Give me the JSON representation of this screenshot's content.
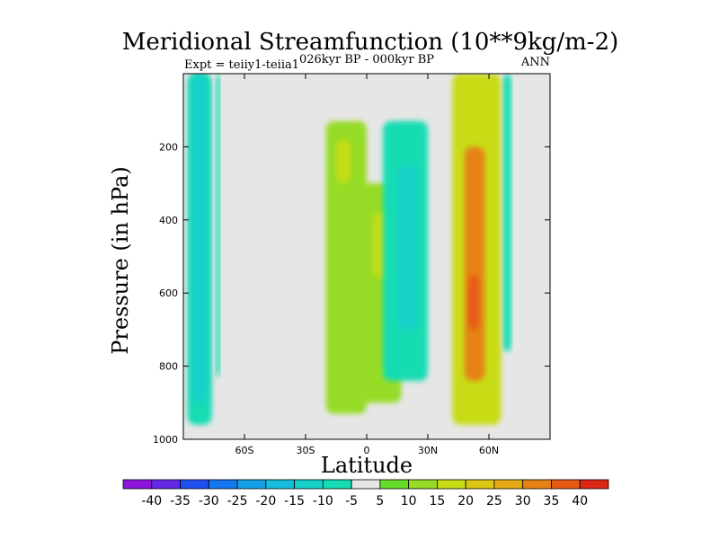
{
  "chart_data": {
    "type": "heatmap",
    "title": "Meridional Streamfunction (10**9kg/m-2)",
    "subtitle_left": "Expt = teiiy1-teiia1",
    "subtitle_center": "026kyr BP - 000kyr BP",
    "subtitle_right": "ANN",
    "xlabel": "Latitude",
    "ylabel": "Pressure (in hPa)",
    "xlim": [
      -90,
      90
    ],
    "ylim": [
      1000,
      0
    ],
    "x_ticks": [
      {
        "value": -60,
        "label": "60S"
      },
      {
        "value": -30,
        "label": "30S"
      },
      {
        "value": 0,
        "label": "0"
      },
      {
        "value": 30,
        "label": "30N"
      },
      {
        "value": 60,
        "label": "60N"
      }
    ],
    "y_ticks": [
      {
        "value": 200,
        "label": "200"
      },
      {
        "value": 400,
        "label": "400"
      },
      {
        "value": 600,
        "label": "600"
      },
      {
        "value": 800,
        "label": "800"
      },
      {
        "value": 1000,
        "label": "1000"
      }
    ],
    "background_color": "#e6e6e6",
    "colorbar": {
      "levels": [
        "-40",
        "-35",
        "-30",
        "-25",
        "-20",
        "-15",
        "-10",
        "-5",
        "5",
        "10",
        "15",
        "20",
        "25",
        "30",
        "35",
        "40"
      ],
      "colors": [
        "#8c14dc",
        "#6428e6",
        "#1e50f0",
        "#1478f0",
        "#14a0e6",
        "#14bedc",
        "#14d2c8",
        "#14dcb4",
        "#e6e6e6",
        "#64dc28",
        "#96dc28",
        "#c8dc14",
        "#dcc814",
        "#e6aa14",
        "#e68214",
        "#e65a14",
        "#dc2814"
      ]
    },
    "regions": [
      {
        "name": "sh-polar-negative",
        "level": -10,
        "lat": [
          -88,
          -76
        ],
        "p": [
          0,
          960
        ]
      },
      {
        "name": "sh-polar-negative-core",
        "level": -15,
        "lat": [
          -86,
          -78
        ],
        "p": [
          0,
          900
        ]
      },
      {
        "name": "sh-polar-negative-strip",
        "level": -10,
        "lat": [
          -74,
          -72
        ],
        "p": [
          0,
          830
        ]
      },
      {
        "name": "tropical-positive-sh",
        "level": 10,
        "lat": [
          -20,
          0
        ],
        "p": [
          130,
          930
        ]
      },
      {
        "name": "tropical-positive-sh-core",
        "level": 15,
        "lat": [
          -15,
          -8
        ],
        "p": [
          180,
          300
        ]
      },
      {
        "name": "tropical-positive-nh",
        "level": 10,
        "lat": [
          -5,
          17
        ],
        "p": [
          300,
          900
        ]
      },
      {
        "name": "tropical-positive-nh-core",
        "level": 15,
        "lat": [
          3,
          13
        ],
        "p": [
          380,
          560
        ]
      },
      {
        "name": "nh-subtropical-negative",
        "level": -10,
        "lat": [
          8,
          30
        ],
        "p": [
          130,
          840
        ]
      },
      {
        "name": "nh-subtropical-negative-core",
        "level": -15,
        "lat": [
          15,
          25
        ],
        "p": [
          250,
          700
        ]
      },
      {
        "name": "nh-midlat-positive",
        "level": 15,
        "lat": [
          42,
          66
        ],
        "p": [
          0,
          960
        ]
      },
      {
        "name": "nh-midlat-positive-core",
        "level": 30,
        "lat": [
          48,
          58
        ],
        "p": [
          200,
          840
        ]
      },
      {
        "name": "nh-midlat-positive-peak",
        "level": 35,
        "lat": [
          50,
          55
        ],
        "p": [
          550,
          700
        ]
      },
      {
        "name": "nh-polar-negative",
        "level": -10,
        "lat": [
          67,
          71
        ],
        "p": [
          0,
          760
        ]
      }
    ]
  }
}
